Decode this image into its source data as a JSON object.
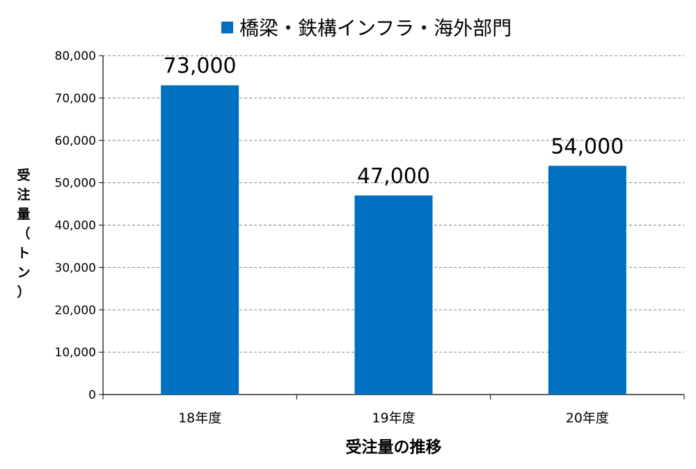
{
  "chart_data": {
    "type": "bar",
    "title": "",
    "categories": [
      "18年度",
      "19年度",
      "20年度"
    ],
    "series": [
      {
        "name": "橋梁・鉄構インフラ・海外部門",
        "values": [
          73000,
          47000,
          54000
        ],
        "color": "#0070C0"
      }
    ],
    "data_labels": [
      "73,000",
      "47,000",
      "54,000"
    ],
    "xlabel": "受注量の推移",
    "ylabel": "受注量（トン）",
    "ylim": [
      0,
      80000
    ],
    "yticks": [
      0,
      10000,
      20000,
      30000,
      40000,
      50000,
      60000,
      70000,
      80000
    ],
    "ytick_labels": [
      "0",
      "10,000",
      "20,000",
      "30,000",
      "40,000",
      "50,000",
      "60,000",
      "70,000",
      "80,000"
    ],
    "grid": true,
    "legend_position": "top-center"
  }
}
